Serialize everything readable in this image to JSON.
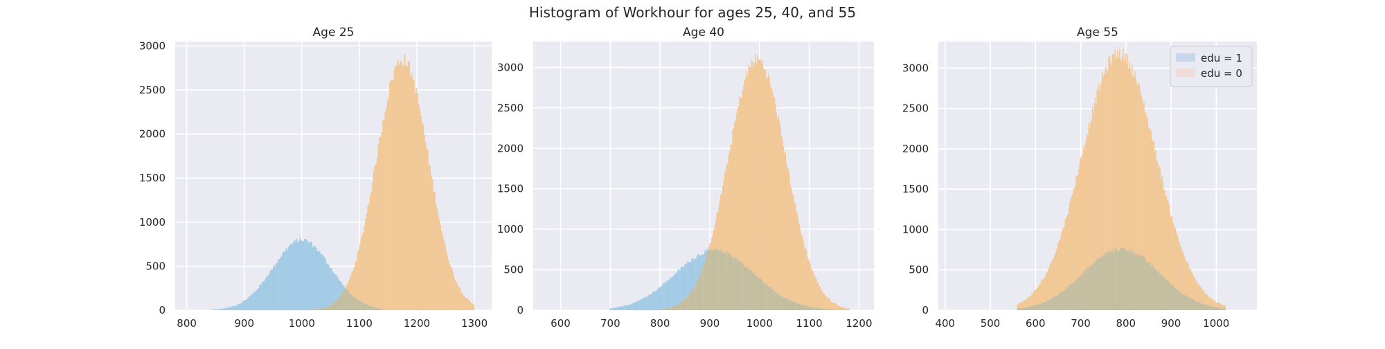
{
  "figure": {
    "suptitle": "Histogram of Workhour for ages 25, 40, and 55",
    "facecolor": "#ffffff"
  },
  "style": {
    "axes_bg": "#eaeaf2",
    "grid": "#ffffff",
    "series_colors": {
      "edu = 1": "#a3cbe6",
      "edu = 0": "#f1c896"
    },
    "overlap_color": "#c4bea0",
    "legend_swatches": {
      "edu = 1": "#c9d7ec",
      "edu = 0": "#f0dcd6"
    }
  },
  "chart_data": [
    {
      "type": "histogram",
      "title": "Age 25",
      "xlabel": "",
      "ylabel": "",
      "xlim": [
        780,
        1330
      ],
      "ylim": [
        0,
        3050
      ],
      "xticks": [
        800,
        900,
        1000,
        1100,
        1200,
        1300
      ],
      "yticks": [
        0,
        500,
        1000,
        1500,
        2000,
        2500,
        3000
      ],
      "grid": true,
      "legend": null,
      "series": [
        {
          "name": "edu = 1",
          "peak_x": 1000,
          "peak_count": 800,
          "std": 50,
          "range": [
            840,
            1140
          ]
        },
        {
          "name": "edu = 0",
          "peak_x": 1175,
          "peak_count": 2850,
          "std": 45,
          "range": [
            1020,
            1300
          ]
        }
      ]
    },
    {
      "type": "histogram",
      "title": "Age 40",
      "xlabel": "",
      "ylabel": "",
      "xlim": [
        545,
        1230
      ],
      "ylim": [
        0,
        3320
      ],
      "xticks": [
        600,
        700,
        800,
        900,
        1000,
        1100,
        1200
      ],
      "yticks": [
        0,
        500,
        1000,
        1500,
        2000,
        2500,
        3000
      ],
      "grid": true,
      "legend": null,
      "series": [
        {
          "name": "edu = 1",
          "peak_x": 910,
          "peak_count": 740,
          "std": 80,
          "range": [
            700,
            1180
          ]
        },
        {
          "name": "edu = 0",
          "peak_x": 995,
          "peak_count": 3100,
          "std": 58,
          "range": [
            780,
            1180
          ]
        }
      ]
    },
    {
      "type": "histogram",
      "title": "Age 55",
      "xlabel": "",
      "ylabel": "",
      "xlim": [
        385,
        1090
      ],
      "ylim": [
        0,
        3330
      ],
      "xticks": [
        400,
        500,
        600,
        700,
        800,
        900,
        1000
      ],
      "yticks": [
        0,
        500,
        1000,
        1500,
        2000,
        2500,
        3000
      ],
      "grid": true,
      "legend": "upper right",
      "legend_entries": [
        "edu = 1",
        "edu = 0"
      ],
      "series": [
        {
          "name": "edu = 1",
          "peak_x": 790,
          "peak_count": 760,
          "std": 85,
          "range": [
            560,
            1020
          ]
        },
        {
          "name": "edu = 0",
          "peak_x": 785,
          "peak_count": 3180,
          "std": 82,
          "range": [
            560,
            1020
          ]
        }
      ]
    }
  ]
}
